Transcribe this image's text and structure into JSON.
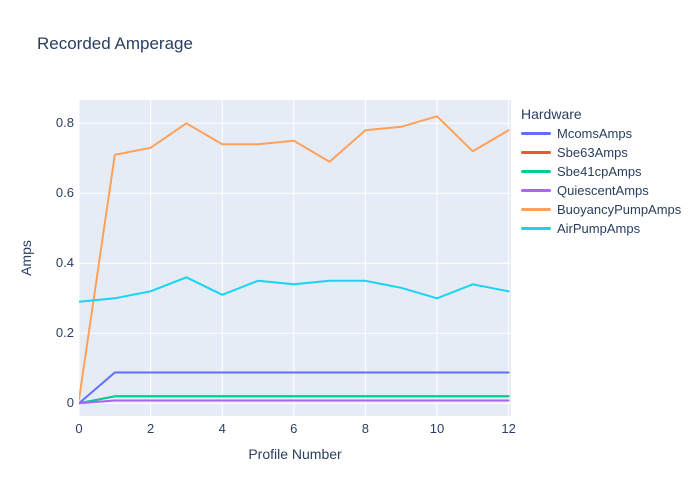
{
  "title": "Recorded Amperage",
  "axes": {
    "x_label": "Profile Number",
    "y_label": "Amps"
  },
  "legend": {
    "title": "Hardware",
    "position": "right"
  },
  "colors": {
    "text": "#2a3f5f",
    "plot_bg": "#e5ecf6",
    "grid": "#ffffff",
    "paper_bg": "#ffffff"
  },
  "chart_data": {
    "type": "line",
    "title": "Recorded Amperage",
    "xlabel": "Profile Number",
    "ylabel": "Amps",
    "legend_title": "Hardware",
    "legend_position": "right",
    "grid": true,
    "x": [
      0,
      1,
      2,
      3,
      4,
      5,
      6,
      7,
      8,
      9,
      10,
      11,
      12
    ],
    "xticks": [
      0,
      2,
      4,
      6,
      8,
      10,
      12
    ],
    "yticks": [
      0,
      0.2,
      0.4,
      0.6,
      0.8
    ],
    "xlim": [
      0,
      12.07
    ],
    "ylim": [
      -0.036,
      0.866
    ],
    "series": [
      {
        "name": "McomsAmps",
        "color": "#636efa",
        "values": [
          0,
          0.088,
          0.088,
          0.088,
          0.088,
          0.088,
          0.088,
          0.088,
          0.088,
          0.088,
          0.088,
          0.088,
          0.088
        ]
      },
      {
        "name": "Sbe63Amps",
        "color": "#ef553b",
        "values": [
          0,
          0.02,
          0.02,
          0.02,
          0.02,
          0.02,
          0.02,
          0.02,
          0.02,
          0.02,
          0.02,
          0.02,
          0.02
        ]
      },
      {
        "name": "Sbe41cpAmps",
        "color": "#00cc96",
        "values": [
          0,
          0.02,
          0.02,
          0.02,
          0.02,
          0.02,
          0.02,
          0.02,
          0.02,
          0.02,
          0.02,
          0.02,
          0.02
        ]
      },
      {
        "name": "QuiescentAmps",
        "color": "#ab63fa",
        "values": [
          0,
          0.008,
          0.008,
          0.008,
          0.008,
          0.008,
          0.008,
          0.008,
          0.008,
          0.008,
          0.008,
          0.008,
          0.008
        ]
      },
      {
        "name": "BuoyancyPumpAmps",
        "color": "#ffa15a",
        "values": [
          0.01,
          0.71,
          0.73,
          0.8,
          0.74,
          0.74,
          0.75,
          0.69,
          0.78,
          0.79,
          0.82,
          0.72,
          0.78
        ]
      },
      {
        "name": "AirPumpAmps",
        "color": "#19d3f3",
        "values": [
          0.29,
          0.3,
          0.32,
          0.36,
          0.31,
          0.35,
          0.34,
          0.35,
          0.35,
          0.33,
          0.3,
          0.34,
          0.32
        ]
      }
    ]
  }
}
